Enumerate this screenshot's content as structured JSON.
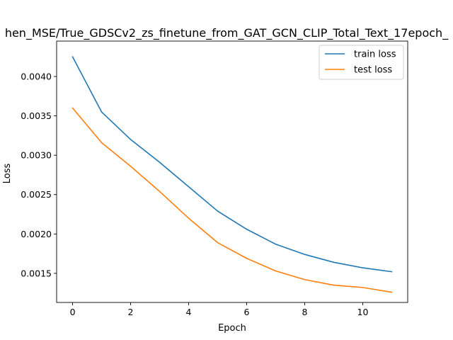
{
  "chart_data": {
    "type": "line",
    "title": "hen_MSE/True_GDSCv2_zs_finetune_from_GAT_GCN_CLIP_Total_Text_17epoch_",
    "xlabel": "Epoch",
    "ylabel": "Loss",
    "xlim": [
      -0.55,
      11.55
    ],
    "ylim": [
      0.00113,
      0.00445
    ],
    "xticks": [
      0,
      2,
      4,
      6,
      8,
      10
    ],
    "xtick_labels": [
      "0",
      "2",
      "4",
      "6",
      "8",
      "10"
    ],
    "yticks": [
      0.0015,
      0.002,
      0.0025,
      0.003,
      0.0035,
      0.004
    ],
    "ytick_labels": [
      "0.0015",
      "0.0020",
      "0.0025",
      "0.0030",
      "0.0035",
      "0.0040"
    ],
    "x": [
      0,
      1,
      2,
      3,
      4,
      5,
      6,
      7,
      8,
      9,
      10,
      11
    ],
    "series": [
      {
        "name": "train loss",
        "color": "#1f77b4",
        "values": [
          0.00425,
          0.00355,
          0.0032,
          0.00291,
          0.0026,
          0.00229,
          0.00206,
          0.00187,
          0.00174,
          0.00164,
          0.00157,
          0.00152
        ]
      },
      {
        "name": "test loss",
        "color": "#ff7f0e",
        "values": [
          0.0036,
          0.00316,
          0.00286,
          0.00254,
          0.0022,
          0.00189,
          0.00169,
          0.00153,
          0.00142,
          0.00135,
          0.00132,
          0.00126
        ]
      }
    ],
    "legend": "top-right",
    "grid": false
  }
}
